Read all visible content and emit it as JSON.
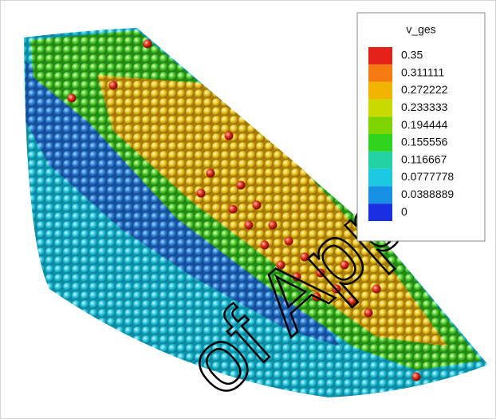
{
  "legend": {
    "title": "v_ges",
    "entries": [
      {
        "label": "0.35",
        "color": "#e3201a"
      },
      {
        "label": "0.311111",
        "color": "#f57a12"
      },
      {
        "label": "0.272222",
        "color": "#f2b400"
      },
      {
        "label": "0.233333",
        "color": "#c8da00"
      },
      {
        "label": "0.194444",
        "color": "#7ed400"
      },
      {
        "label": "0.155556",
        "color": "#2fd21c"
      },
      {
        "label": "0.116667",
        "color": "#22d2a2"
      },
      {
        "label": "0.0777778",
        "color": "#1cc8e2"
      },
      {
        "label": "0.0388889",
        "color": "#1690e2"
      },
      {
        "label": "0",
        "color": "#1a2ee2"
      }
    ]
  },
  "watermark": "of Applie"
}
